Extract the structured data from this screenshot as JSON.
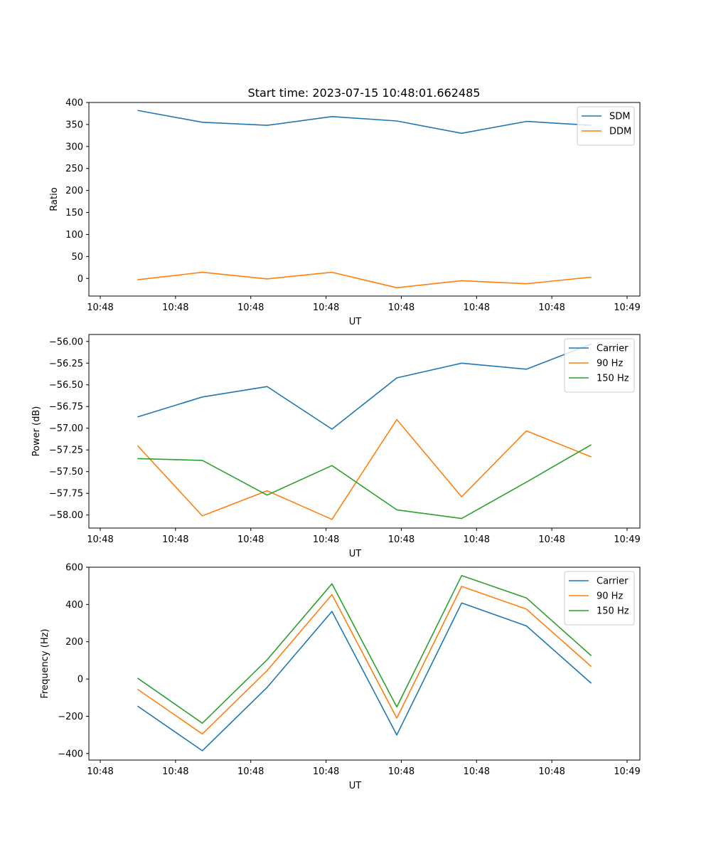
{
  "title": "Start time: 2023-07-15 10:48:01.662485",
  "chart_data": [
    {
      "type": "line",
      "title": "",
      "xlabel": "UT",
      "ylabel": "Ratio",
      "x_tick_labels": [
        "10:48",
        "10:48",
        "10:48",
        "10:48",
        "10:48",
        "10:48",
        "10:48",
        "10:49"
      ],
      "x": [
        1,
        2,
        3,
        4,
        5,
        6,
        7,
        8
      ],
      "xlim": [
        0.25,
        8.75
      ],
      "ylim": [
        -40,
        400
      ],
      "y_ticks": [
        0,
        50,
        100,
        150,
        200,
        250,
        300,
        350,
        400
      ],
      "legend_position": "upper-right",
      "series": [
        {
          "name": "SDM",
          "color": "#1f77b4",
          "values": [
            382,
            355,
            348,
            368,
            358,
            330,
            357,
            348
          ]
        },
        {
          "name": "DDM",
          "color": "#ff7f0e",
          "values": [
            -3,
            14,
            -1,
            14,
            -21,
            -5,
            -12,
            3
          ]
        }
      ]
    },
    {
      "type": "line",
      "title": "",
      "xlabel": "UT",
      "ylabel": "Power (dB)",
      "x_tick_labels": [
        "10:48",
        "10:48",
        "10:48",
        "10:48",
        "10:48",
        "10:48",
        "10:48",
        "10:49"
      ],
      "x": [
        1,
        2,
        3,
        4,
        5,
        6,
        7,
        8
      ],
      "xlim": [
        0.25,
        8.75
      ],
      "ylim": [
        -58.15,
        -55.92
      ],
      "y_ticks": [
        -58.0,
        -57.75,
        -57.5,
        -57.25,
        -57.0,
        -56.75,
        -56.5,
        -56.25,
        -56.0
      ],
      "y_tick_labels": [
        "−58.00",
        "−57.75",
        "−57.50",
        "−57.25",
        "−57.00",
        "−56.75",
        "−56.50",
        "−56.25",
        "−56.00"
      ],
      "legend_position": "upper-right",
      "series": [
        {
          "name": "Carrier",
          "color": "#1f77b4",
          "values": [
            -56.87,
            -56.64,
            -56.52,
            -57.01,
            -56.42,
            -56.25,
            -56.32,
            -56.03
          ]
        },
        {
          "name": "90 Hz",
          "color": "#ff7f0e",
          "values": [
            -57.2,
            -58.01,
            -57.72,
            -58.05,
            -56.9,
            -57.79,
            -57.03,
            -57.33
          ]
        },
        {
          "name": "150 Hz",
          "color": "#2ca02c",
          "values": [
            -57.35,
            -57.37,
            -57.77,
            -57.43,
            -57.94,
            -58.04,
            -57.62,
            -57.19
          ]
        }
      ]
    },
    {
      "type": "line",
      "title": "",
      "xlabel": "UT",
      "ylabel": "Frequency (Hz)",
      "x_tick_labels": [
        "10:48",
        "10:48",
        "10:48",
        "10:48",
        "10:48",
        "10:48",
        "10:48",
        "10:49"
      ],
      "x": [
        1,
        2,
        3,
        4,
        5,
        6,
        7,
        8
      ],
      "xlim": [
        0.25,
        8.75
      ],
      "ylim": [
        -435,
        600
      ],
      "y_ticks": [
        -400,
        -200,
        0,
        200,
        400,
        600
      ],
      "y_tick_labels": [
        "−400",
        "−200",
        "0",
        "200",
        "400",
        "600"
      ],
      "legend_position": "upper-right",
      "series": [
        {
          "name": "Carrier",
          "color": "#1f77b4",
          "values": [
            -145,
            -385,
            -45,
            363,
            -300,
            408,
            285,
            -23
          ]
        },
        {
          "name": "90 Hz",
          "color": "#ff7f0e",
          "values": [
            -55,
            -295,
            45,
            453,
            -210,
            497,
            375,
            67
          ]
        },
        {
          "name": "150 Hz",
          "color": "#2ca02c",
          "values": [
            5,
            -237,
            103,
            511,
            -150,
            555,
            435,
            125
          ]
        }
      ]
    }
  ]
}
